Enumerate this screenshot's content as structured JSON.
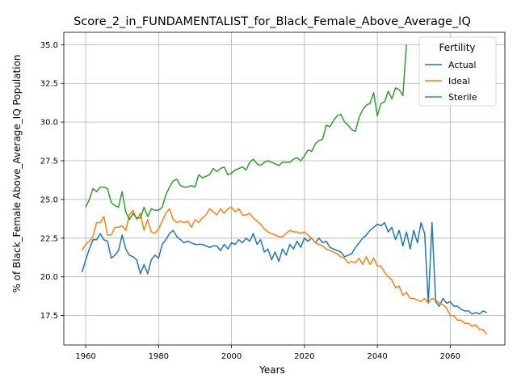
{
  "chart_data": {
    "type": "line",
    "title": "Score_2_in_FUNDAMENTALIST_for_Black_Female_Above_Average_IQ",
    "xlabel": "Years",
    "ylabel": "% of Black_Female Above_Average_IQ Population",
    "xlim": [
      1954,
      2075
    ],
    "ylim": [
      15.6,
      35.8
    ],
    "xticks": [
      1960,
      1980,
      2000,
      2020,
      2040,
      2060
    ],
    "yticks": [
      17.5,
      20.0,
      22.5,
      25.0,
      27.5,
      30.0,
      32.5,
      35.0
    ],
    "ytick_labels": [
      "17.5",
      "20.0",
      "22.5",
      "25.0",
      "27.5",
      "30.0",
      "32.5",
      "35.0"
    ],
    "grid": true,
    "legend": {
      "title": "Fertility",
      "position": "top-right"
    },
    "series": [
      {
        "name": "Actual",
        "color": "#1f77b4",
        "x": [
          1959,
          1960,
          1961,
          1962,
          1963,
          1964,
          1965,
          1966,
          1967,
          1968,
          1969,
          1970,
          1971,
          1972,
          1973,
          1974,
          1975,
          1976,
          1977,
          1978,
          1979,
          1980,
          1981,
          1982,
          1983,
          1984,
          1985,
          1986,
          1987,
          1988,
          1989,
          1990,
          1991,
          1992,
          1993,
          1994,
          1995,
          1996,
          1997,
          1998,
          1999,
          2000,
          2001,
          2002,
          2003,
          2004,
          2005,
          2006,
          2007,
          2008,
          2009,
          2010,
          2011,
          2012,
          2013,
          2014,
          2015,
          2016,
          2017,
          2018,
          2019,
          2020,
          2021,
          2022,
          2023,
          2024,
          2025,
          2026,
          2027,
          2028,
          2029,
          2030,
          2031,
          2032,
          2033,
          2034,
          2035,
          2036,
          2037,
          2038,
          2039,
          2040,
          2041,
          2042,
          2043,
          2044,
          2045,
          2046,
          2047,
          2048,
          2049,
          2050,
          2051,
          2052,
          2053,
          2054,
          2055,
          2056,
          2057,
          2058,
          2059,
          2060,
          2061,
          2062,
          2063,
          2064,
          2065,
          2066,
          2067,
          2068,
          2069,
          2070
        ],
        "values": [
          20.3,
          21.1,
          21.8,
          22.4,
          22.4,
          22.8,
          22.4,
          22.3,
          21.2,
          21.4,
          21.7,
          22.7,
          21.8,
          21.4,
          21.3,
          21.1,
          20.2,
          20.8,
          20.2,
          21.1,
          21.4,
          21.2,
          22.1,
          22.4,
          22.8,
          23.0,
          22.6,
          22.4,
          22.2,
          22.3,
          22.2,
          22.1,
          22.1,
          22.1,
          22.0,
          21.9,
          22.0,
          22.0,
          21.7,
          22.1,
          21.8,
          22.2,
          22.1,
          22.4,
          22.2,
          22.5,
          22.3,
          22.8,
          22.1,
          22.4,
          21.6,
          21.8,
          21.1,
          21.6,
          21.0,
          21.8,
          21.4,
          22.1,
          21.8,
          22.3,
          21.9,
          22.5,
          22.3,
          22.5,
          22.2,
          22.5,
          22.2,
          22.3,
          21.9,
          21.8,
          21.7,
          21.6,
          21.3,
          21.4,
          21.5,
          21.9,
          22.2,
          22.5,
          22.7,
          23.0,
          23.2,
          23.4,
          23.3,
          23.5,
          22.9,
          23.2,
          22.4,
          23.0,
          22.0,
          22.9,
          21.8,
          23.0,
          22.2,
          23.5,
          22.8,
          18.3,
          23.5,
          18.4,
          18.1,
          18.6,
          18.3,
          18.4,
          18.1,
          18.1,
          17.9,
          17.8,
          17.8,
          17.6,
          17.7,
          17.6,
          17.8,
          17.7
        ]
      },
      {
        "name": "Ideal",
        "color": "#ff7f0e",
        "x": [
          1959,
          1960,
          1961,
          1962,
          1963,
          1964,
          1965,
          1966,
          1967,
          1968,
          1969,
          1970,
          1971,
          1972,
          1973,
          1974,
          1975,
          1976,
          1977,
          1978,
          1979,
          1980,
          1981,
          1982,
          1983,
          1984,
          1985,
          1986,
          1987,
          1988,
          1989,
          1990,
          1991,
          1992,
          1993,
          1994,
          1995,
          1996,
          1997,
          1998,
          1999,
          2000,
          2001,
          2002,
          2003,
          2004,
          2005,
          2006,
          2007,
          2008,
          2009,
          2010,
          2011,
          2012,
          2013,
          2014,
          2015,
          2016,
          2017,
          2018,
          2019,
          2020,
          2021,
          2022,
          2023,
          2024,
          2025,
          2026,
          2027,
          2028,
          2029,
          2030,
          2031,
          2032,
          2033,
          2034,
          2035,
          2036,
          2037,
          2038,
          2039,
          2040,
          2041,
          2042,
          2043,
          2044,
          2045,
          2046,
          2047,
          2048,
          2049,
          2050,
          2051,
          2052,
          2053,
          2054,
          2055,
          2056,
          2057,
          2058,
          2059,
          2060,
          2061,
          2062,
          2063,
          2064,
          2065,
          2066,
          2067,
          2068,
          2069,
          2070
        ],
        "values": [
          21.7,
          22.1,
          22.3,
          22.6,
          23.5,
          23.5,
          23.9,
          22.7,
          22.7,
          23.2,
          23.2,
          23.3,
          23.0,
          24.0,
          24.3,
          23.7,
          24.1,
          23.0,
          23.7,
          22.9,
          22.8,
          23.1,
          23.6,
          24.1,
          24.4,
          23.7,
          23.5,
          23.6,
          23.5,
          23.6,
          23.2,
          23.7,
          23.5,
          23.8,
          24.0,
          24.4,
          24.2,
          24.0,
          24.4,
          24.1,
          24.4,
          24.5,
          24.2,
          24.4,
          24.0,
          24.0,
          24.1,
          23.8,
          23.6,
          23.4,
          23.1,
          22.9,
          22.8,
          22.7,
          22.6,
          22.6,
          22.8,
          23.0,
          22.9,
          22.9,
          22.8,
          22.9,
          22.7,
          22.5,
          22.2,
          22.1,
          22.0,
          21.8,
          21.7,
          21.6,
          21.5,
          21.3,
          21.2,
          20.9,
          21.0,
          20.9,
          21.2,
          20.8,
          21.3,
          20.8,
          21.2,
          20.7,
          20.7,
          20.3,
          20.0,
          19.8,
          19.3,
          19.4,
          18.8,
          19.0,
          18.6,
          18.6,
          18.5,
          18.4,
          18.6,
          18.3,
          18.6,
          18.5,
          18.3,
          18.2,
          18.0,
          17.5,
          17.5,
          17.2,
          17.2,
          17.0,
          17.0,
          16.8,
          16.9,
          16.6,
          16.6,
          16.3
        ]
      },
      {
        "name": "Sterile",
        "color": "#2ca02c",
        "x": [
          1960,
          1961,
          1962,
          1963,
          1964,
          1965,
          1966,
          1967,
          1968,
          1969,
          1970,
          1971,
          1972,
          1973,
          1974,
          1975,
          1976,
          1977,
          1978,
          1979,
          1980,
          1981,
          1982,
          1983,
          1984,
          1985,
          1986,
          1987,
          1988,
          1989,
          1990,
          1991,
          1992,
          1993,
          1994,
          1995,
          1996,
          1997,
          1998,
          1999,
          2000,
          2001,
          2002,
          2003,
          2004,
          2005,
          2006,
          2007,
          2008,
          2009,
          2010,
          2011,
          2012,
          2013,
          2014,
          2015,
          2016,
          2017,
          2018,
          2019,
          2020,
          2021,
          2022,
          2023,
          2024,
          2025,
          2026,
          2027,
          2028,
          2029,
          2030,
          2031,
          2032,
          2033,
          2034,
          2035,
          2036,
          2037,
          2038,
          2039,
          2040,
          2041,
          2042,
          2043,
          2044,
          2045,
          2046,
          2047,
          2048
        ],
        "values": [
          24.5,
          25.0,
          25.7,
          25.5,
          25.8,
          25.8,
          25.7,
          24.8,
          24.6,
          24.5,
          25.5,
          24.2,
          23.7,
          24.1,
          23.8,
          23.8,
          24.5,
          23.9,
          24.4,
          24.3,
          24.3,
          24.5,
          25.3,
          25.8,
          26.2,
          26.3,
          25.9,
          25.8,
          25.8,
          25.9,
          25.8,
          26.6,
          26.4,
          26.5,
          26.6,
          27.0,
          26.8,
          27.0,
          27.1,
          26.6,
          26.7,
          26.9,
          27.0,
          27.1,
          26.9,
          27.4,
          27.6,
          27.3,
          27.2,
          27.4,
          27.5,
          27.4,
          27.3,
          27.2,
          27.4,
          27.4,
          27.4,
          27.6,
          27.7,
          27.5,
          27.8,
          28.2,
          28.1,
          28.6,
          28.8,
          28.9,
          29.8,
          29.7,
          30.1,
          30.4,
          30.5,
          30.0,
          29.8,
          29.5,
          29.4,
          30.3,
          30.8,
          31.1,
          31.2,
          31.9,
          30.4,
          31.2,
          31.3,
          32.0,
          31.5,
          32.2,
          32.1,
          31.7,
          35.0
        ]
      }
    ]
  }
}
